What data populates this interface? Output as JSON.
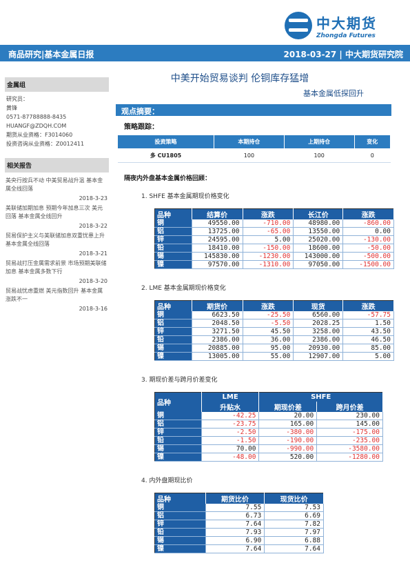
{
  "header": {
    "logo_cn": "中大期货",
    "logo_en": "Zhongda Futures",
    "banner_left": "商品研究|基本金属日报",
    "banner_right": "2018-03-27 | 中大期货研究院"
  },
  "sidebar": {
    "group_title": "金属组",
    "lines": [
      "研究员：",
      "黄锋",
      "0571-87788888-8435",
      "HUANGF@ZDQH.COM",
      "期货从业资格：F3014060",
      "投资咨询从业资格：Z0012411"
    ],
    "reports_title": "相关报告",
    "reports": [
      {
        "text": "美央行按兵不动 中美贸易战升温 基本金属全线回落",
        "date": "2018-3-23"
      },
      {
        "text": "美联储加期加息 预期今年加息三次 美元回落 基本金属全线回升",
        "date": "2018-3-22"
      },
      {
        "text": "贸易保护主义与美联储加息双重忧患上升 基本金属全线回落",
        "date": "2018-3-21"
      },
      {
        "text": "贸易战打压金属需求前景 市场预期美联储加息 基本金属多数下行",
        "date": "2018-3-20"
      },
      {
        "text": "贸易战忧虑重燃 美元指数回升 基本金属涨跌不一",
        "date": "2018-3-16"
      }
    ]
  },
  "main": {
    "title": "中美开始贸易谈判 伦铜库存猛增",
    "subtitle": "基本金属低探回升",
    "section_bar": "观点摘要：",
    "strategy_label": "策略跟踪：",
    "position_table": {
      "headers": [
        "投资策略",
        "本期持仓",
        "上期持仓",
        "变化"
      ],
      "rows": [
        [
          "多 CU1805",
          "100",
          "100",
          "0"
        ]
      ]
    },
    "price_review_title": "隔夜内外盘基本金属价格回顾：",
    "shfe": {
      "num": "1.",
      "title": "SHFE 基本金属期现价格变化",
      "headers": [
        "品种",
        "结算价",
        "涨跌",
        "长江价",
        "涨跌"
      ],
      "rows": [
        [
          "铜",
          "49550.00",
          "-710.00",
          "48980.00",
          "-860.00"
        ],
        [
          "铝",
          "13725.00",
          "-65.00",
          "13550.00",
          "0.00"
        ],
        [
          "锌",
          "24595.00",
          "5.00",
          "25020.00",
          "-130.00"
        ],
        [
          "铅",
          "18410.00",
          "-150.00",
          "18600.00",
          "-50.00"
        ],
        [
          "锡",
          "145830.00",
          "-1230.00",
          "143000.00",
          "-500.00"
        ],
        [
          "镍",
          "97570.00",
          "-1310.00",
          "97050.00",
          "-1500.00"
        ]
      ]
    },
    "lme": {
      "num": "2.",
      "title": "LME 基本金属期现价格变化",
      "headers": [
        "品种",
        "期货价",
        "涨跌",
        "现货",
        "涨跌"
      ],
      "rows": [
        [
          "铜",
          "6623.50",
          "-25.50",
          "6560.00",
          "-57.75"
        ],
        [
          "铝",
          "2048.50",
          "-5.50",
          "2028.25",
          "1.50"
        ],
        [
          "锌",
          "3271.50",
          "45.50",
          "3258.00",
          "43.50"
        ],
        [
          "铅",
          "2386.00",
          "36.00",
          "2386.00",
          "46.50"
        ],
        [
          "锡",
          "20885.00",
          "95.00",
          "20930.00",
          "85.00"
        ],
        [
          "镍",
          "13005.00",
          "55.00",
          "12907.00",
          "5.00"
        ]
      ]
    },
    "spread": {
      "num": "3.",
      "title": "期现价差与跨月价差变化",
      "group_headers": [
        "品种",
        "LME",
        "SHFE"
      ],
      "sub_headers": [
        "升贴水",
        "期现价差",
        "跨月价差"
      ],
      "rows": [
        [
          "铜",
          "-42.25",
          "20.00",
          "230.00"
        ],
        [
          "铝",
          "-23.75",
          "165.00",
          "145.00"
        ],
        [
          "锌",
          "-2.50",
          "-380.00",
          "-175.00"
        ],
        [
          "铅",
          "-1.50",
          "-190.00",
          "-235.00"
        ],
        [
          "锡",
          "70.00",
          "-990.00",
          "-3580.00"
        ],
        [
          "镍",
          "-48.00",
          "520.00",
          "-1280.00"
        ]
      ]
    },
    "ratio": {
      "num": "4.",
      "title": "内外盘期现比价",
      "headers": [
        "品种",
        "期货比价",
        "现货比价"
      ],
      "rows": [
        [
          "铜",
          "7.55",
          "7.53"
        ],
        [
          "铝",
          "6.73",
          "6.69"
        ],
        [
          "锌",
          "7.64",
          "7.82"
        ],
        [
          "铅",
          "7.93",
          "7.97"
        ],
        [
          "锡",
          "6.90",
          "6.88"
        ],
        [
          "镍",
          "7.64",
          "7.64"
        ]
      ]
    }
  }
}
